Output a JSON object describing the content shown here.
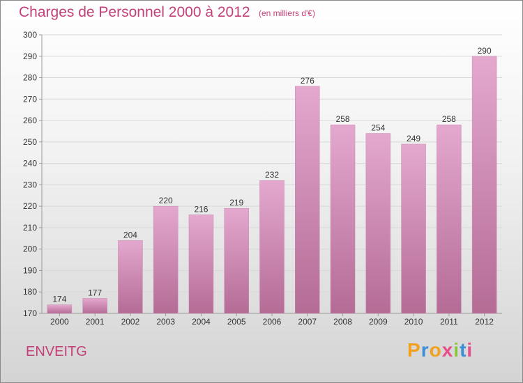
{
  "header": {
    "title": "Charges de Personnel 2000 à 2012",
    "subtitle": "(en milliers d'€)"
  },
  "footer": {
    "place": "ENVEITG",
    "logo_letters": [
      "P",
      "r",
      "o",
      "x",
      "i",
      "t",
      "i"
    ],
    "logo_colors": [
      "#f2a11f",
      "#3c8fd6",
      "#f2a11f",
      "#e84d8a",
      "#8cc63f",
      "#3c8fd6",
      "#e84d8a"
    ]
  },
  "colors": {
    "bar_top": "#e4a8cf",
    "bar_bottom": "#b46c95",
    "axis": "#999999",
    "grid": "#d8d8d8"
  },
  "chart_data": {
    "type": "bar",
    "title": "Charges de Personnel 2000 à 2012",
    "subtitle": "(en milliers d'€)",
    "categories": [
      "2000",
      "2001",
      "2002",
      "2003",
      "2004",
      "2005",
      "2006",
      "2007",
      "2008",
      "2009",
      "2010",
      "2011",
      "2012"
    ],
    "values": [
      174,
      177,
      204,
      220,
      216,
      219,
      232,
      276,
      258,
      254,
      249,
      258,
      290
    ],
    "ylim": [
      170,
      300
    ],
    "yticks": [
      170,
      180,
      190,
      200,
      210,
      220,
      230,
      240,
      250,
      260,
      270,
      280,
      290,
      300
    ],
    "grid": true,
    "legend": "none"
  }
}
